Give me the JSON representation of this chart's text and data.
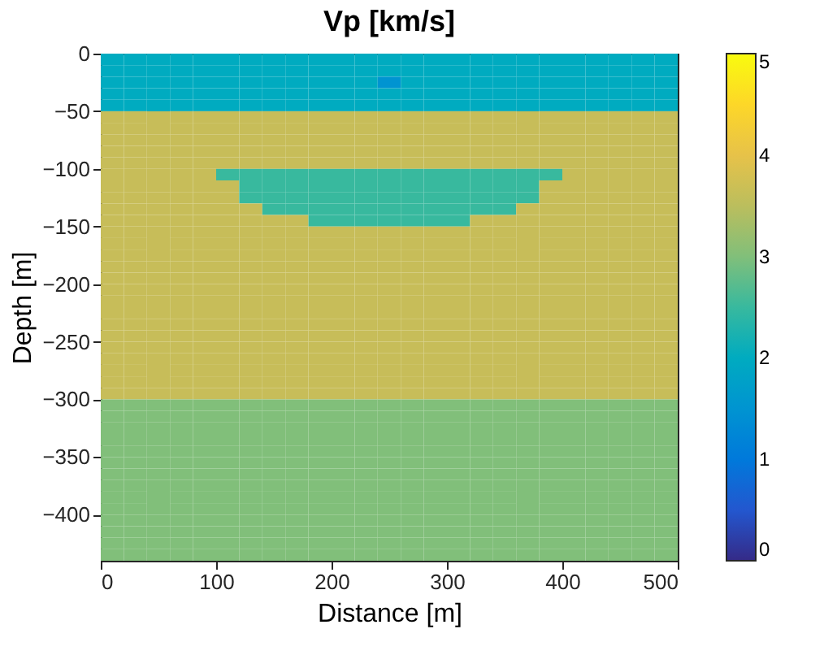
{
  "chart_data": {
    "type": "heatmap",
    "title": "Vp [km/s]",
    "xlabel": "Distance [m]",
    "ylabel": "Depth [m]",
    "xlim": [
      0,
      500
    ],
    "xticks": [
      0,
      100,
      200,
      300,
      400,
      500
    ],
    "ylim": [
      -440,
      0
    ],
    "yticks": [
      0,
      -50,
      -100,
      -150,
      -200,
      -250,
      -300,
      -350,
      -400
    ],
    "clim": [
      0,
      5
    ],
    "cticks": [
      0,
      1,
      2,
      3,
      4,
      5
    ],
    "grid": false,
    "cells": [
      [
        2.0,
        2.0,
        2.0,
        2.0,
        2.0,
        2.0,
        2.0,
        2.0,
        2.0,
        2.0,
        2.0,
        2.0,
        2.0,
        2.0,
        2.0,
        2.0,
        2.0,
        2.0,
        2.0,
        2.0,
        2.0,
        2.0,
        2.0,
        2.0,
        2.0
      ],
      [
        2.0,
        2.0,
        2.0,
        2.0,
        2.0,
        2.0,
        2.0,
        2.0,
        2.0,
        2.0,
        2.0,
        2.0,
        2.0,
        2.0,
        2.0,
        2.0,
        2.0,
        2.0,
        2.0,
        2.0,
        2.0,
        2.0,
        2.0,
        2.0,
        2.0
      ],
      [
        2.0,
        2.0,
        2.0,
        2.0,
        2.0,
        2.0,
        2.0,
        2.0,
        2.0,
        2.0,
        2.0,
        2.0,
        1.5,
        2.0,
        2.0,
        2.0,
        2.0,
        2.0,
        2.0,
        2.0,
        2.0,
        2.0,
        2.0,
        2.0,
        2.0
      ],
      [
        2.0,
        2.0,
        2.0,
        2.0,
        2.0,
        2.0,
        2.0,
        2.0,
        2.0,
        2.0,
        2.0,
        2.0,
        2.0,
        2.0,
        2.0,
        2.0,
        2.0,
        2.0,
        2.0,
        2.0,
        2.0,
        2.0,
        2.0,
        2.0,
        2.0
      ],
      [
        2.0,
        2.0,
        2.0,
        2.0,
        2.0,
        2.0,
        2.0,
        2.0,
        2.0,
        2.0,
        2.0,
        2.0,
        2.0,
        2.0,
        2.0,
        2.0,
        2.0,
        2.0,
        2.0,
        2.0,
        2.0,
        2.0,
        2.0,
        2.0,
        2.0
      ],
      [
        3.6,
        3.6,
        3.6,
        3.6,
        3.6,
        3.6,
        3.6,
        3.6,
        3.6,
        3.6,
        3.6,
        3.6,
        3.6,
        3.6,
        3.6,
        3.6,
        3.6,
        3.6,
        3.6,
        3.6,
        3.6,
        3.6,
        3.6,
        3.6,
        3.6
      ],
      [
        3.6,
        3.6,
        3.6,
        3.6,
        3.6,
        3.6,
        3.6,
        3.6,
        3.6,
        3.6,
        3.6,
        3.6,
        3.6,
        3.6,
        3.6,
        3.6,
        3.6,
        3.6,
        3.6,
        3.6,
        3.6,
        3.6,
        3.6,
        3.6,
        3.6
      ],
      [
        3.6,
        3.6,
        3.6,
        3.6,
        3.6,
        3.6,
        3.6,
        3.6,
        3.6,
        3.6,
        3.6,
        3.6,
        3.6,
        3.6,
        3.6,
        3.6,
        3.6,
        3.6,
        3.6,
        3.6,
        3.6,
        3.6,
        3.6,
        3.6,
        3.6
      ],
      [
        3.6,
        3.6,
        3.6,
        3.6,
        3.6,
        3.6,
        3.6,
        3.6,
        3.6,
        3.6,
        3.6,
        3.6,
        3.6,
        3.6,
        3.6,
        3.6,
        3.6,
        3.6,
        3.6,
        3.6,
        3.6,
        3.6,
        3.6,
        3.6,
        3.6
      ],
      [
        3.6,
        3.6,
        3.6,
        3.6,
        3.6,
        3.6,
        3.6,
        3.6,
        3.6,
        3.6,
        3.6,
        3.6,
        3.6,
        3.6,
        3.6,
        3.6,
        3.6,
        3.6,
        3.6,
        3.6,
        3.6,
        3.6,
        3.6,
        3.6,
        3.6
      ],
      [
        3.6,
        3.6,
        3.6,
        3.6,
        3.6,
        2.5,
        2.5,
        2.5,
        2.5,
        2.5,
        2.5,
        2.5,
        2.5,
        2.5,
        2.5,
        2.5,
        2.5,
        2.5,
        2.5,
        2.5,
        3.6,
        3.6,
        3.6,
        3.6,
        3.6
      ],
      [
        3.6,
        3.6,
        3.6,
        3.6,
        3.6,
        3.6,
        2.5,
        2.5,
        2.5,
        2.5,
        2.5,
        2.5,
        2.5,
        2.5,
        2.5,
        2.5,
        2.5,
        2.5,
        2.5,
        3.6,
        3.6,
        3.6,
        3.6,
        3.6,
        3.6
      ],
      [
        3.6,
        3.6,
        3.6,
        3.6,
        3.6,
        3.6,
        2.5,
        2.5,
        2.5,
        2.5,
        2.5,
        2.5,
        2.5,
        2.5,
        2.5,
        2.5,
        2.5,
        2.5,
        2.5,
        3.6,
        3.6,
        3.6,
        3.6,
        3.6,
        3.6
      ],
      [
        3.6,
        3.6,
        3.6,
        3.6,
        3.6,
        3.6,
        3.6,
        2.5,
        2.5,
        2.5,
        2.5,
        2.5,
        2.5,
        2.5,
        2.5,
        2.5,
        2.5,
        2.5,
        3.6,
        3.6,
        3.6,
        3.6,
        3.6,
        3.6,
        3.6
      ],
      [
        3.6,
        3.6,
        3.6,
        3.6,
        3.6,
        3.6,
        3.6,
        3.6,
        3.6,
        2.5,
        2.5,
        2.5,
        2.5,
        2.5,
        2.5,
        2.5,
        3.6,
        3.6,
        3.6,
        3.6,
        3.6,
        3.6,
        3.6,
        3.6,
        3.6
      ],
      [
        3.6,
        3.6,
        3.6,
        3.6,
        3.6,
        3.6,
        3.6,
        3.6,
        3.6,
        3.6,
        3.6,
        3.6,
        3.6,
        3.6,
        3.6,
        3.6,
        3.6,
        3.6,
        3.6,
        3.6,
        3.6,
        3.6,
        3.6,
        3.6,
        3.6
      ],
      [
        3.6,
        3.6,
        3.6,
        3.6,
        3.6,
        3.6,
        3.6,
        3.6,
        3.6,
        3.6,
        3.6,
        3.6,
        3.6,
        3.6,
        3.6,
        3.6,
        3.6,
        3.6,
        3.6,
        3.6,
        3.6,
        3.6,
        3.6,
        3.6,
        3.6
      ],
      [
        3.6,
        3.6,
        3.6,
        3.6,
        3.6,
        3.6,
        3.6,
        3.6,
        3.6,
        3.6,
        3.6,
        3.6,
        3.6,
        3.6,
        3.6,
        3.6,
        3.6,
        3.6,
        3.6,
        3.6,
        3.6,
        3.6,
        3.6,
        3.6,
        3.6
      ],
      [
        3.6,
        3.6,
        3.6,
        3.6,
        3.6,
        3.6,
        3.6,
        3.6,
        3.6,
        3.6,
        3.6,
        3.6,
        3.6,
        3.6,
        3.6,
        3.6,
        3.6,
        3.6,
        3.6,
        3.6,
        3.6,
        3.6,
        3.6,
        3.6,
        3.6
      ],
      [
        3.6,
        3.6,
        3.6,
        3.6,
        3.6,
        3.6,
        3.6,
        3.6,
        3.6,
        3.6,
        3.6,
        3.6,
        3.6,
        3.6,
        3.6,
        3.6,
        3.6,
        3.6,
        3.6,
        3.6,
        3.6,
        3.6,
        3.6,
        3.6,
        3.6
      ],
      [
        3.6,
        3.6,
        3.6,
        3.6,
        3.6,
        3.6,
        3.6,
        3.6,
        3.6,
        3.6,
        3.6,
        3.6,
        3.6,
        3.6,
        3.6,
        3.6,
        3.6,
        3.6,
        3.6,
        3.6,
        3.6,
        3.6,
        3.6,
        3.6,
        3.6
      ],
      [
        3.6,
        3.6,
        3.6,
        3.6,
        3.6,
        3.6,
        3.6,
        3.6,
        3.6,
        3.6,
        3.6,
        3.6,
        3.6,
        3.6,
        3.6,
        3.6,
        3.6,
        3.6,
        3.6,
        3.6,
        3.6,
        3.6,
        3.6,
        3.6,
        3.6
      ],
      [
        3.6,
        3.6,
        3.6,
        3.6,
        3.6,
        3.6,
        3.6,
        3.6,
        3.6,
        3.6,
        3.6,
        3.6,
        3.6,
        3.6,
        3.6,
        3.6,
        3.6,
        3.6,
        3.6,
        3.6,
        3.6,
        3.6,
        3.6,
        3.6,
        3.6
      ],
      [
        3.6,
        3.6,
        3.6,
        3.6,
        3.6,
        3.6,
        3.6,
        3.6,
        3.6,
        3.6,
        3.6,
        3.6,
        3.6,
        3.6,
        3.6,
        3.6,
        3.6,
        3.6,
        3.6,
        3.6,
        3.6,
        3.6,
        3.6,
        3.6,
        3.6
      ],
      [
        3.6,
        3.6,
        3.6,
        3.6,
        3.6,
        3.6,
        3.6,
        3.6,
        3.6,
        3.6,
        3.6,
        3.6,
        3.6,
        3.6,
        3.6,
        3.6,
        3.6,
        3.6,
        3.6,
        3.6,
        3.6,
        3.6,
        3.6,
        3.6,
        3.6
      ],
      [
        3.6,
        3.6,
        3.6,
        3.6,
        3.6,
        3.6,
        3.6,
        3.6,
        3.6,
        3.6,
        3.6,
        3.6,
        3.6,
        3.6,
        3.6,
        3.6,
        3.6,
        3.6,
        3.6,
        3.6,
        3.6,
        3.6,
        3.6,
        3.6,
        3.6
      ],
      [
        3.6,
        3.6,
        3.6,
        3.6,
        3.6,
        3.6,
        3.6,
        3.6,
        3.6,
        3.6,
        3.6,
        3.6,
        3.6,
        3.6,
        3.6,
        3.6,
        3.6,
        3.6,
        3.6,
        3.6,
        3.6,
        3.6,
        3.6,
        3.6,
        3.6
      ],
      [
        3.6,
        3.6,
        3.6,
        3.6,
        3.6,
        3.6,
        3.6,
        3.6,
        3.6,
        3.6,
        3.6,
        3.6,
        3.6,
        3.6,
        3.6,
        3.6,
        3.6,
        3.6,
        3.6,
        3.6,
        3.6,
        3.6,
        3.6,
        3.6,
        3.6
      ],
      [
        3.6,
        3.6,
        3.6,
        3.6,
        3.6,
        3.6,
        3.6,
        3.6,
        3.6,
        3.6,
        3.6,
        3.6,
        3.6,
        3.6,
        3.6,
        3.6,
        3.6,
        3.6,
        3.6,
        3.6,
        3.6,
        3.6,
        3.6,
        3.6,
        3.6
      ],
      [
        3.6,
        3.6,
        3.6,
        3.6,
        3.6,
        3.6,
        3.6,
        3.6,
        3.6,
        3.6,
        3.6,
        3.6,
        3.6,
        3.6,
        3.6,
        3.6,
        3.6,
        3.6,
        3.6,
        3.6,
        3.6,
        3.6,
        3.6,
        3.6,
        3.6
      ],
      [
        3.0,
        3.0,
        3.0,
        3.0,
        3.0,
        3.0,
        3.0,
        3.0,
        3.0,
        3.0,
        3.0,
        3.0,
        3.0,
        3.0,
        3.0,
        3.0,
        3.0,
        3.0,
        3.0,
        3.0,
        3.0,
        3.0,
        3.0,
        3.0,
        3.0
      ],
      [
        3.0,
        3.0,
        3.0,
        3.0,
        3.0,
        3.0,
        3.0,
        3.0,
        3.0,
        3.0,
        3.0,
        3.0,
        3.0,
        3.0,
        3.0,
        3.0,
        3.0,
        3.0,
        3.0,
        3.0,
        3.0,
        3.0,
        3.0,
        3.0,
        3.0
      ],
      [
        3.0,
        3.0,
        3.0,
        3.0,
        3.0,
        3.0,
        3.0,
        3.0,
        3.0,
        3.0,
        3.0,
        3.0,
        3.0,
        3.0,
        3.0,
        3.0,
        3.0,
        3.0,
        3.0,
        3.0,
        3.0,
        3.0,
        3.0,
        3.0,
        3.0
      ],
      [
        3.0,
        3.0,
        3.0,
        3.0,
        3.0,
        3.0,
        3.0,
        3.0,
        3.0,
        3.0,
        3.0,
        3.0,
        3.0,
        3.0,
        3.0,
        3.0,
        3.0,
        3.0,
        3.0,
        3.0,
        3.0,
        3.0,
        3.0,
        3.0,
        3.0
      ],
      [
        3.0,
        3.0,
        3.0,
        3.0,
        3.0,
        3.0,
        3.0,
        3.0,
        3.0,
        3.0,
        3.0,
        3.0,
        3.0,
        3.0,
        3.0,
        3.0,
        3.0,
        3.0,
        3.0,
        3.0,
        3.0,
        3.0,
        3.0,
        3.0,
        3.0
      ],
      [
        3.0,
        3.0,
        3.0,
        3.0,
        3.0,
        3.0,
        3.0,
        3.0,
        3.0,
        3.0,
        3.0,
        3.0,
        3.0,
        3.0,
        3.0,
        3.0,
        3.0,
        3.0,
        3.0,
        3.0,
        3.0,
        3.0,
        3.0,
        3.0,
        3.0
      ],
      [
        3.0,
        3.0,
        3.0,
        3.0,
        3.0,
        3.0,
        3.0,
        3.0,
        3.0,
        3.0,
        3.0,
        3.0,
        3.0,
        3.0,
        3.0,
        3.0,
        3.0,
        3.0,
        3.0,
        3.0,
        3.0,
        3.0,
        3.0,
        3.0,
        3.0
      ],
      [
        3.0,
        3.0,
        3.0,
        3.0,
        3.0,
        3.0,
        3.0,
        3.0,
        3.0,
        3.0,
        3.0,
        3.0,
        3.0,
        3.0,
        3.0,
        3.0,
        3.0,
        3.0,
        3.0,
        3.0,
        3.0,
        3.0,
        3.0,
        3.0,
        3.0
      ],
      [
        3.0,
        3.0,
        3.0,
        3.0,
        3.0,
        3.0,
        3.0,
        3.0,
        3.0,
        3.0,
        3.0,
        3.0,
        3.0,
        3.0,
        3.0,
        3.0,
        3.0,
        3.0,
        3.0,
        3.0,
        3.0,
        3.0,
        3.0,
        3.0,
        3.0
      ],
      [
        3.0,
        3.0,
        3.0,
        3.0,
        3.0,
        3.0,
        3.0,
        3.0,
        3.0,
        3.0,
        3.0,
        3.0,
        3.0,
        3.0,
        3.0,
        3.0,
        3.0,
        3.0,
        3.0,
        3.0,
        3.0,
        3.0,
        3.0,
        3.0,
        3.0
      ],
      [
        3.0,
        3.0,
        3.0,
        3.0,
        3.0,
        3.0,
        3.0,
        3.0,
        3.0,
        3.0,
        3.0,
        3.0,
        3.0,
        3.0,
        3.0,
        3.0,
        3.0,
        3.0,
        3.0,
        3.0,
        3.0,
        3.0,
        3.0,
        3.0,
        3.0
      ],
      [
        3.0,
        3.0,
        3.0,
        3.0,
        3.0,
        3.0,
        3.0,
        3.0,
        3.0,
        3.0,
        3.0,
        3.0,
        3.0,
        3.0,
        3.0,
        3.0,
        3.0,
        3.0,
        3.0,
        3.0,
        3.0,
        3.0,
        3.0,
        3.0,
        3.0
      ],
      [
        3.0,
        3.0,
        3.0,
        3.0,
        3.0,
        3.0,
        3.0,
        3.0,
        3.0,
        3.0,
        3.0,
        3.0,
        3.0,
        3.0,
        3.0,
        3.0,
        3.0,
        3.0,
        3.0,
        3.0,
        3.0,
        3.0,
        3.0,
        3.0,
        3.0
      ],
      [
        3.0,
        3.0,
        3.0,
        3.0,
        3.0,
        3.0,
        3.0,
        3.0,
        3.0,
        3.0,
        3.0,
        3.0,
        3.0,
        3.0,
        3.0,
        3.0,
        3.0,
        3.0,
        3.0,
        3.0,
        3.0,
        3.0,
        3.0,
        3.0,
        3.0
      ]
    ]
  }
}
